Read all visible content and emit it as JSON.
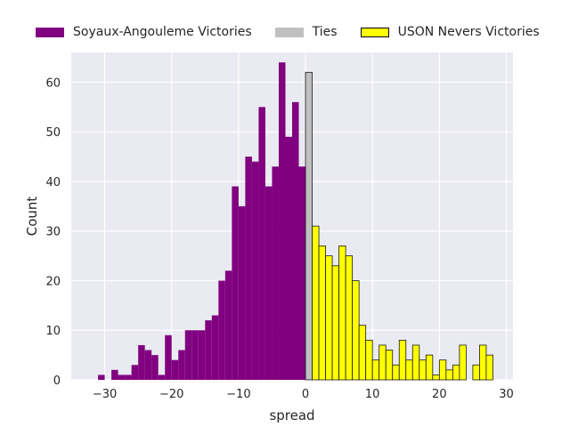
{
  "chart_data": {
    "type": "bar",
    "xlabel": "spread",
    "ylabel": "Count",
    "xlim": [
      -35,
      31
    ],
    "ylim": [
      0,
      66
    ],
    "xticks": [
      -30,
      -20,
      -10,
      0,
      10,
      20,
      30
    ],
    "xtick_labels": [
      "−30",
      "−20",
      "−10",
      "0",
      "10",
      "20",
      "30"
    ],
    "yticks": [
      0,
      10,
      20,
      30,
      40,
      50,
      60
    ],
    "ytick_labels": [
      "0",
      "10",
      "20",
      "30",
      "40",
      "50",
      "60"
    ],
    "grid": true,
    "legend_position": "top",
    "bin_width": 1,
    "series": [
      {
        "name": "Soyaux-Angouleme Victories",
        "color": "#800080",
        "x": [
          -32,
          -31,
          -30,
          -29,
          -28,
          -27,
          -26,
          -25,
          -24,
          -23,
          -22,
          -21,
          -20,
          -19,
          -18,
          -17,
          -16,
          -15,
          -14,
          -13,
          -12,
          -11,
          -10,
          -9,
          -8,
          -7,
          -6,
          -5,
          -4,
          -3,
          -2,
          -1
        ],
        "values": [
          0,
          1,
          0,
          2,
          1,
          1,
          3,
          7,
          6,
          5,
          1,
          9,
          4,
          6,
          10,
          10,
          10,
          12,
          13,
          20,
          22,
          39,
          35,
          45,
          44,
          55,
          39,
          43,
          64,
          49,
          56,
          43
        ]
      },
      {
        "name": "Ties",
        "color": "#c0c0c0",
        "x": [
          0
        ],
        "values": [
          62
        ]
      },
      {
        "name": "USON Nevers Victories",
        "color": "#ffff00",
        "x": [
          1,
          2,
          3,
          4,
          5,
          6,
          7,
          8,
          9,
          10,
          11,
          12,
          13,
          14,
          15,
          16,
          17,
          18,
          19,
          20,
          21,
          22,
          23,
          24,
          25,
          26,
          27,
          28
        ],
        "values": [
          31,
          27,
          25,
          23,
          27,
          25,
          20,
          11,
          8,
          4,
          7,
          6,
          3,
          8,
          4,
          7,
          4,
          5,
          1,
          4,
          2,
          3,
          7,
          0,
          3,
          7,
          5,
          0
        ]
      }
    ]
  }
}
